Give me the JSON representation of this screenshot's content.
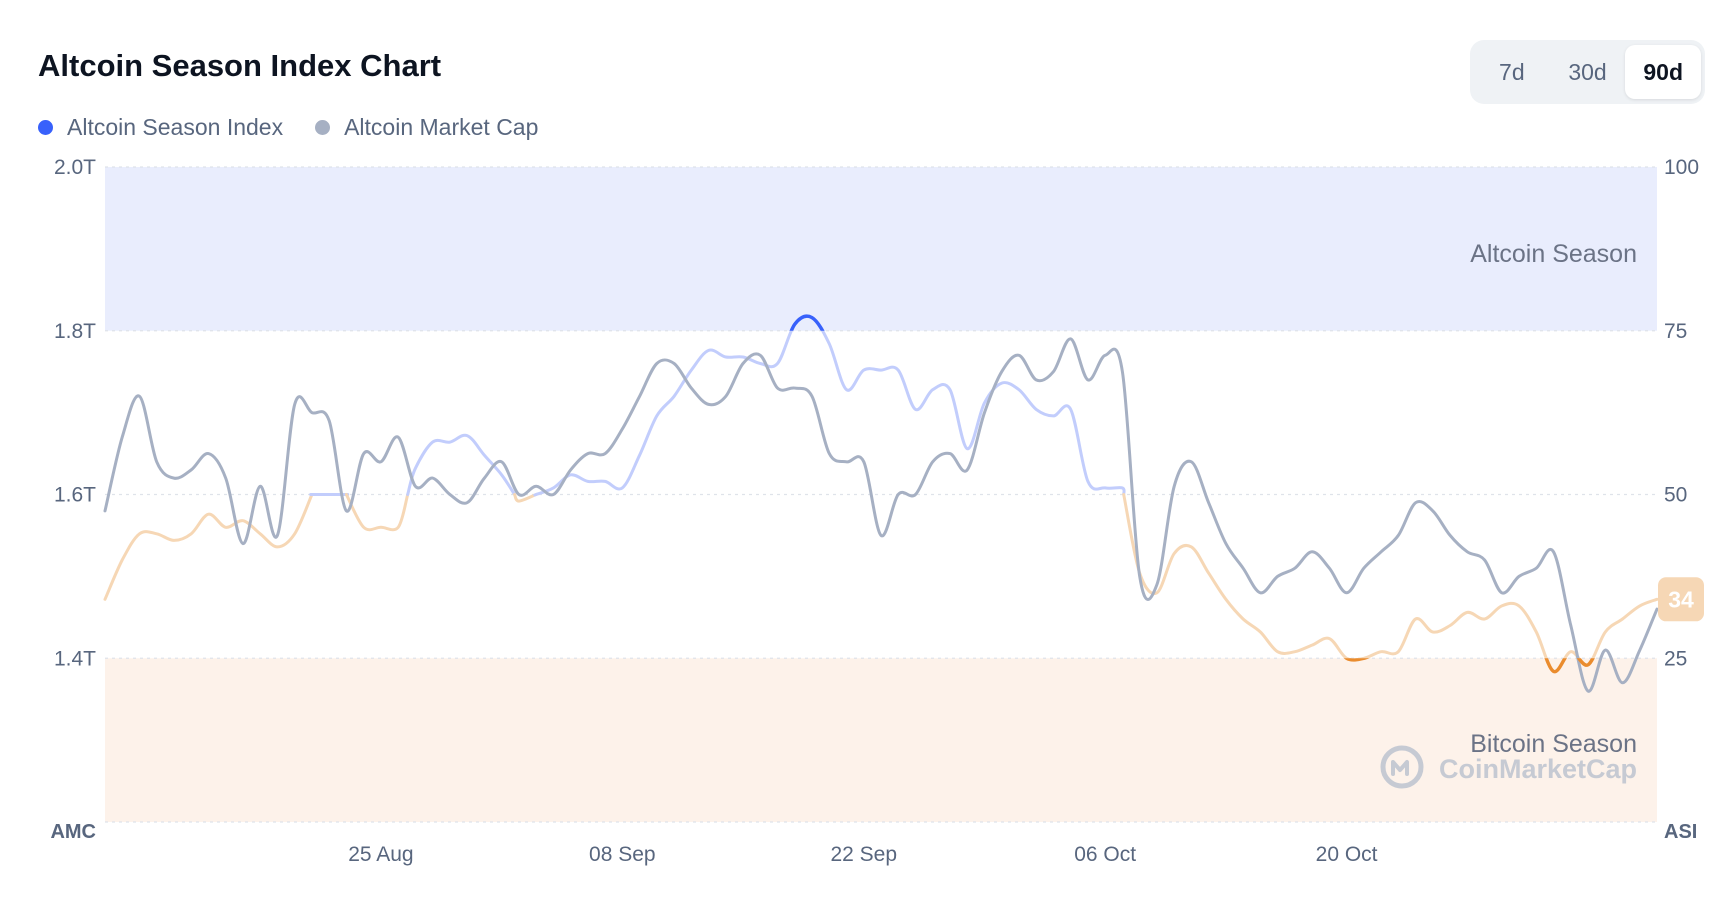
{
  "header": {
    "title": "Altcoin Season Index Chart"
  },
  "legend": [
    {
      "label": "Altcoin Season Index",
      "color": "#3861fb"
    },
    {
      "label": "Altcoin Market Cap",
      "color": "#a6b0c3"
    }
  ],
  "range_tabs": [
    {
      "label": "7d",
      "active": false
    },
    {
      "label": "30d",
      "active": false
    },
    {
      "label": "90d",
      "active": true
    }
  ],
  "zones": {
    "altcoin": "Altcoin Season",
    "bitcoin": "Bitcoin Season"
  },
  "watermark": "CoinMarketCap",
  "current_badge": "34",
  "colors": {
    "altcoin_strong": "#3861fb",
    "altcoin_light": "#c2cdfc",
    "bitcoin_strong": "#ea8c2e",
    "bitcoin_light": "#f6d7b5",
    "market_cap": "#a6b0c3",
    "altcoin_zone": "#e9edfd",
    "bitcoin_zone": "#fdf2ea"
  },
  "chart_data": {
    "type": "line",
    "left_axis": {
      "id": "AMC",
      "ticks": [
        "2.0T",
        "1.8T",
        "1.6T",
        "1.4T"
      ],
      "tick_values": [
        2.0,
        1.8,
        1.6,
        1.4
      ],
      "range": [
        1.2,
        2.0
      ]
    },
    "right_axis": {
      "id": "ASI",
      "ticks": [
        "100",
        "75",
        "50",
        "25"
      ],
      "tick_values": [
        100,
        75,
        50,
        25
      ],
      "range": [
        0,
        100
      ]
    },
    "x_ticks": [
      {
        "label": "25 Aug",
        "day": 16
      },
      {
        "label": "08 Sep",
        "day": 30
      },
      {
        "label": "22 Sep",
        "day": 44
      },
      {
        "label": "06 Oct",
        "day": 58
      },
      {
        "label": "20 Oct",
        "day": 72
      }
    ],
    "day_range": [
      0,
      90
    ],
    "thresholds": {
      "altcoin_season": 75,
      "bitcoin_season": 25
    },
    "series": [
      {
        "name": "Altcoin Season Index",
        "axis": "right",
        "points": [
          [
            0,
            34
          ],
          [
            1,
            40
          ],
          [
            2,
            44
          ],
          [
            3,
            44
          ],
          [
            4,
            43
          ],
          [
            5,
            44
          ],
          [
            6,
            47
          ],
          [
            7,
            45
          ],
          [
            8,
            46
          ],
          [
            9,
            44
          ],
          [
            10,
            42
          ],
          [
            11,
            44
          ],
          [
            12,
            50
          ],
          [
            13,
            50
          ],
          [
            14,
            50
          ],
          [
            15,
            45
          ],
          [
            16,
            45
          ],
          [
            17,
            45
          ],
          [
            18,
            54
          ],
          [
            19,
            58
          ],
          [
            20,
            58
          ],
          [
            21,
            59
          ],
          [
            22,
            56
          ],
          [
            23,
            53
          ],
          [
            24,
            49
          ],
          [
            25,
            50
          ],
          [
            26,
            51
          ],
          [
            27,
            53
          ],
          [
            28,
            52
          ],
          [
            29,
            52
          ],
          [
            30,
            51
          ],
          [
            31,
            56
          ],
          [
            32,
            62
          ],
          [
            33,
            65
          ],
          [
            34,
            69
          ],
          [
            35,
            72
          ],
          [
            36,
            71
          ],
          [
            37,
            71
          ],
          [
            38,
            70
          ],
          [
            39,
            70
          ],
          [
            40,
            76
          ],
          [
            41,
            77
          ],
          [
            42,
            73
          ],
          [
            43,
            66
          ],
          [
            44,
            69
          ],
          [
            45,
            69
          ],
          [
            46,
            69
          ],
          [
            47,
            63
          ],
          [
            48,
            66
          ],
          [
            49,
            66
          ],
          [
            50,
            57
          ],
          [
            51,
            64
          ],
          [
            52,
            67
          ],
          [
            53,
            66
          ],
          [
            54,
            63
          ],
          [
            55,
            62
          ],
          [
            56,
            63
          ],
          [
            57,
            52
          ],
          [
            58,
            51
          ],
          [
            59,
            51
          ],
          [
            60,
            38
          ],
          [
            61,
            35
          ],
          [
            62,
            41
          ],
          [
            63,
            42
          ],
          [
            64,
            38
          ],
          [
            65,
            34
          ],
          [
            66,
            31
          ],
          [
            67,
            29
          ],
          [
            68,
            26
          ],
          [
            69,
            26
          ],
          [
            70,
            27
          ],
          [
            71,
            28
          ],
          [
            72,
            25
          ],
          [
            73,
            25
          ],
          [
            74,
            26
          ],
          [
            75,
            26
          ],
          [
            76,
            31
          ],
          [
            77,
            29
          ],
          [
            78,
            30
          ],
          [
            79,
            32
          ],
          [
            80,
            31
          ],
          [
            81,
            33
          ],
          [
            82,
            33
          ],
          [
            83,
            29
          ],
          [
            84,
            23
          ],
          [
            85,
            26
          ],
          [
            86,
            24
          ],
          [
            87,
            29
          ],
          [
            88,
            31
          ],
          [
            89,
            33
          ],
          [
            90,
            34
          ]
        ]
      },
      {
        "name": "Altcoin Market Cap",
        "axis": "left",
        "points": [
          [
            0,
            1.58
          ],
          [
            1,
            1.67
          ],
          [
            2,
            1.72
          ],
          [
            3,
            1.64
          ],
          [
            4,
            1.62
          ],
          [
            5,
            1.63
          ],
          [
            6,
            1.65
          ],
          [
            7,
            1.62
          ],
          [
            8,
            1.54
          ],
          [
            9,
            1.61
          ],
          [
            10,
            1.55
          ],
          [
            11,
            1.71
          ],
          [
            12,
            1.7
          ],
          [
            13,
            1.69
          ],
          [
            14,
            1.58
          ],
          [
            15,
            1.65
          ],
          [
            16,
            1.64
          ],
          [
            17,
            1.67
          ],
          [
            18,
            1.61
          ],
          [
            19,
            1.62
          ],
          [
            20,
            1.6
          ],
          [
            21,
            1.59
          ],
          [
            22,
            1.62
          ],
          [
            23,
            1.64
          ],
          [
            24,
            1.6
          ],
          [
            25,
            1.61
          ],
          [
            26,
            1.6
          ],
          [
            27,
            1.63
          ],
          [
            28,
            1.65
          ],
          [
            29,
            1.65
          ],
          [
            30,
            1.68
          ],
          [
            31,
            1.72
          ],
          [
            32,
            1.76
          ],
          [
            33,
            1.76
          ],
          [
            34,
            1.73
          ],
          [
            35,
            1.71
          ],
          [
            36,
            1.72
          ],
          [
            37,
            1.76
          ],
          [
            38,
            1.77
          ],
          [
            39,
            1.73
          ],
          [
            40,
            1.73
          ],
          [
            41,
            1.72
          ],
          [
            42,
            1.65
          ],
          [
            43,
            1.64
          ],
          [
            44,
            1.64
          ],
          [
            45,
            1.55
          ],
          [
            46,
            1.6
          ],
          [
            47,
            1.6
          ],
          [
            48,
            1.64
          ],
          [
            49,
            1.65
          ],
          [
            50,
            1.63
          ],
          [
            51,
            1.7
          ],
          [
            52,
            1.75
          ],
          [
            53,
            1.77
          ],
          [
            54,
            1.74
          ],
          [
            55,
            1.75
          ],
          [
            56,
            1.79
          ],
          [
            57,
            1.74
          ],
          [
            58,
            1.77
          ],
          [
            59,
            1.75
          ],
          [
            60,
            1.5
          ],
          [
            61,
            1.49
          ],
          [
            62,
            1.61
          ],
          [
            63,
            1.64
          ],
          [
            64,
            1.59
          ],
          [
            65,
            1.54
          ],
          [
            66,
            1.51
          ],
          [
            67,
            1.48
          ],
          [
            68,
            1.5
          ],
          [
            69,
            1.51
          ],
          [
            70,
            1.53
          ],
          [
            71,
            1.51
          ],
          [
            72,
            1.48
          ],
          [
            73,
            1.51
          ],
          [
            74,
            1.53
          ],
          [
            75,
            1.55
          ],
          [
            76,
            1.59
          ],
          [
            77,
            1.58
          ],
          [
            78,
            1.55
          ],
          [
            79,
            1.53
          ],
          [
            80,
            1.52
          ],
          [
            81,
            1.48
          ],
          [
            82,
            1.5
          ],
          [
            83,
            1.51
          ],
          [
            84,
            1.53
          ],
          [
            85,
            1.44
          ],
          [
            86,
            1.36
          ],
          [
            87,
            1.41
          ],
          [
            88,
            1.37
          ],
          [
            89,
            1.41
          ],
          [
            90,
            1.46
          ]
        ]
      }
    ]
  }
}
